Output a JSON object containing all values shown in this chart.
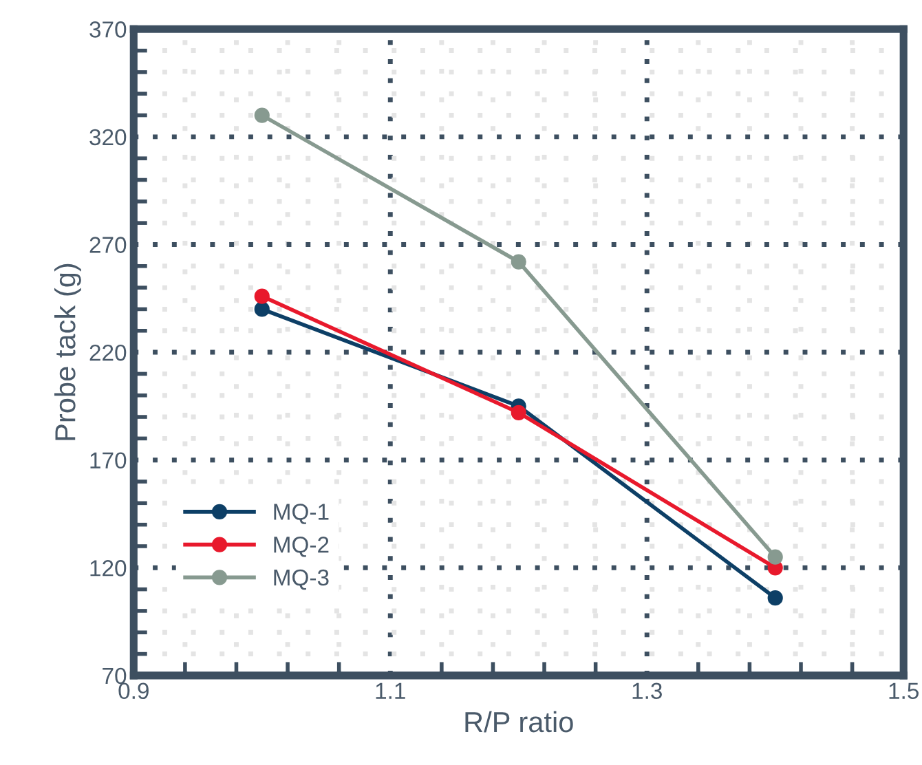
{
  "chart_data": {
    "type": "line",
    "xlabel": "R/P ratio",
    "ylabel": "Probe tack (g)",
    "x": [
      1.0,
      1.2,
      1.4
    ],
    "series": [
      {
        "name": "MQ-1",
        "color": "#0d3f66",
        "values": [
          240,
          195,
          106
        ]
      },
      {
        "name": "MQ-2",
        "color": "#e8192c",
        "values": [
          246,
          192,
          120
        ]
      },
      {
        "name": "MQ-3",
        "color": "#879a90",
        "values": [
          330,
          262,
          125
        ]
      }
    ],
    "xlim": [
      0.9,
      1.5
    ],
    "xticks": [
      0.9,
      1.1,
      1.3,
      1.5
    ],
    "ylim": [
      70,
      370
    ],
    "yticks": [
      70,
      120,
      170,
      220,
      270,
      320,
      370
    ],
    "grid": true,
    "legend": "bottom left",
    "marker": "circle",
    "line_style": "solid"
  }
}
